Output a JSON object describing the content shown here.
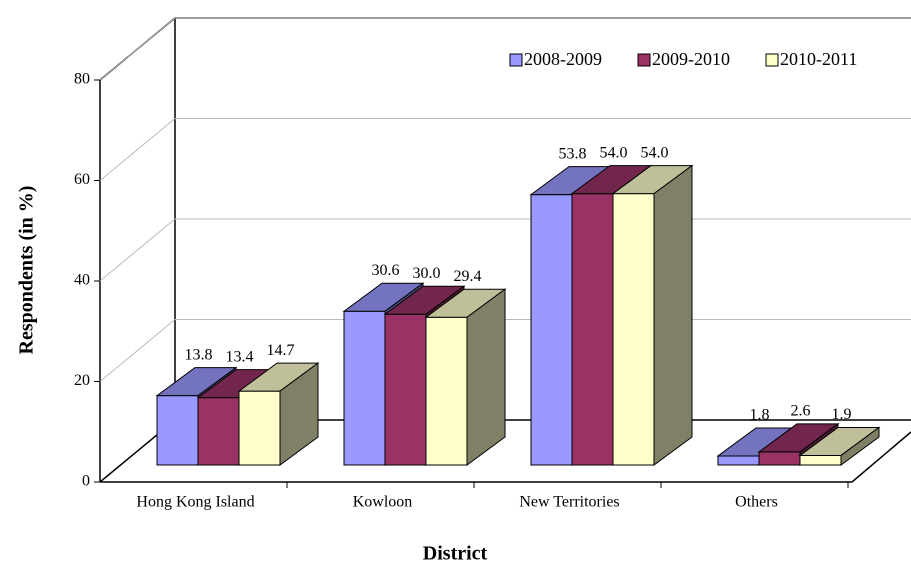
{
  "chart_data": {
    "type": "bar3d",
    "x_label": "District",
    "y_label": "Respondents (in %)",
    "categories": [
      "Hong Kong Island",
      "Kowloon",
      "New Territories",
      "Others"
    ],
    "series": [
      {
        "name": "2008-2009",
        "color": "#9999ff",
        "values": [
          13.8,
          30.6,
          53.8,
          1.8
        ],
        "value_labels": [
          "13.8",
          "30.6",
          "53.8",
          "1.8"
        ]
      },
      {
        "name": "2009-2010",
        "color": "#993366",
        "values": [
          13.4,
          30.0,
          54.0,
          2.6
        ],
        "value_labels": [
          "13.4",
          "30.0",
          "54.0",
          "2.6"
        ]
      },
      {
        "name": "2010-2011",
        "color": "#ffffcc",
        "values": [
          14.7,
          29.4,
          54.0,
          1.9
        ],
        "value_labels": [
          "14.7",
          "29.4",
          "54.0",
          "1.9"
        ]
      }
    ],
    "ylim": [
      0,
      80
    ],
    "yticks": [
      0,
      20,
      40,
      60,
      80
    ],
    "grid": true,
    "legend": "top-right"
  }
}
